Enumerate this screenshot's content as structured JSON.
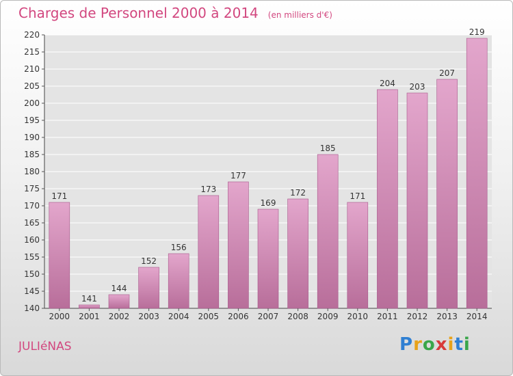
{
  "title": "Charges de Personnel 2000 à 2014",
  "subtitle": "(en milliers d'€)",
  "commune": "JULIéNAS",
  "logo": {
    "text": "Proxiti",
    "letter_colors": [
      "#2f7fd2",
      "#e8a21a",
      "#3aa64a",
      "#d83a3a",
      "#e8a21a",
      "#2f7fd2",
      "#3aa64a"
    ]
  },
  "colors": {
    "accent": "#d2477f",
    "bar_top": "#e3a6cc",
    "bar_bottom": "#b86e9a",
    "bar_edge": "#a6578a"
  },
  "chart_data": {
    "type": "bar",
    "categories": [
      "2000",
      "2001",
      "2002",
      "2003",
      "2004",
      "2005",
      "2006",
      "2007",
      "2008",
      "2009",
      "2010",
      "2011",
      "2012",
      "2013",
      "2014"
    ],
    "values": [
      171,
      141,
      144,
      152,
      156,
      173,
      177,
      169,
      172,
      185,
      171,
      204,
      203,
      207,
      219
    ],
    "ylim": [
      140,
      220
    ],
    "yticks": [
      140,
      145,
      150,
      155,
      160,
      165,
      170,
      175,
      180,
      185,
      190,
      195,
      200,
      205,
      210,
      215,
      220
    ],
    "grid": true,
    "xlabel": "",
    "ylabel": ""
  }
}
